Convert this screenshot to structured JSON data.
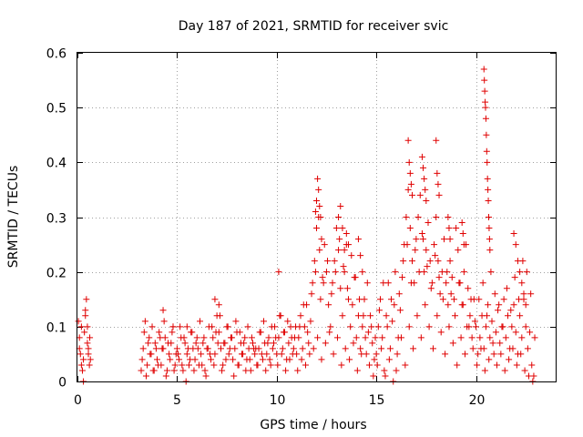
{
  "chart_data": {
    "type": "scatter",
    "title": "Day 187 of 2021, SRMTID for receiver svic",
    "xlabel": "GPS time / hours",
    "ylabel": "SRMTID / TECUs",
    "xlim": [
      0,
      24
    ],
    "ylim": [
      0,
      0.6
    ],
    "xticks": [
      0,
      5,
      10,
      15,
      20
    ],
    "xtick_labels": [
      "0",
      "5",
      "10",
      "15",
      "20"
    ],
    "yticks": [
      0,
      0.1,
      0.2,
      0.3,
      0.4,
      0.5,
      0.6
    ],
    "ytick_labels": [
      "0",
      "0.1",
      "0.2",
      "0.3",
      "0.4",
      "0.5",
      "0.6"
    ],
    "grid": true,
    "marker": "+",
    "color": "#e00000",
    "series": [
      {
        "name": "SRMTID",
        "x": [
          0.05,
          0.1,
          0.15,
          0.2,
          0.25,
          0.3,
          0.35,
          0.4,
          0.45,
          0.5,
          0.55,
          0.6,
          0.65,
          0.1,
          0.2,
          0.3,
          0.4,
          0.5,
          0.55,
          0.62,
          3.2,
          3.3,
          3.4,
          3.5,
          3.6,
          3.7,
          3.8,
          3.9,
          4.0,
          4.1,
          4.2,
          4.3,
          4.4,
          4.5,
          4.6,
          4.7,
          4.8,
          4.9,
          5.0,
          5.1,
          5.2,
          5.3,
          5.4,
          5.5,
          5.6,
          5.7,
          5.8,
          5.9,
          6.0,
          6.1,
          6.2,
          6.3,
          6.4,
          6.5,
          6.6,
          6.7,
          6.8,
          6.9,
          7.0,
          7.1,
          7.2,
          7.3,
          7.4,
          7.5,
          7.6,
          7.7,
          7.8,
          7.9,
          8.0,
          8.1,
          8.2,
          8.3,
          8.4,
          8.5,
          8.6,
          8.7,
          8.8,
          8.9,
          9.0,
          9.1,
          9.2,
          9.3,
          9.4,
          9.5,
          9.6,
          9.7,
          9.8,
          9.9,
          10.0,
          10.1,
          10.2,
          10.3,
          10.4,
          10.5,
          10.6,
          10.7,
          10.8,
          10.9,
          3.25,
          3.45,
          3.65,
          3.85,
          4.05,
          4.25,
          4.45,
          4.65,
          4.85,
          5.05,
          5.25,
          5.45,
          5.65,
          5.85,
          6.05,
          6.25,
          6.45,
          6.65,
          6.85,
          7.05,
          7.25,
          7.45,
          7.65,
          7.85,
          8.05,
          8.25,
          8.45,
          8.65,
          8.85,
          9.05,
          9.25,
          9.45,
          9.65,
          9.85,
          10.05,
          10.25,
          10.45,
          10.65,
          10.85,
          3.35,
          3.55,
          3.75,
          3.95,
          4.15,
          4.35,
          4.55,
          4.75,
          4.95,
          5.15,
          5.35,
          5.55,
          5.75,
          5.95,
          6.15,
          6.35,
          6.55,
          6.75,
          6.95,
          7.15,
          7.35,
          7.55,
          7.75,
          7.95,
          8.15,
          8.35,
          8.55,
          8.75,
          8.95,
          9.15,
          9.35,
          9.55,
          9.75,
          9.95,
          10.15,
          10.35,
          10.55,
          10.75,
          10.95,
          4.3,
          4.8,
          5.5,
          6.9,
          7.1,
          10.1,
          11.0,
          11.1,
          11.2,
          11.3,
          11.4,
          11.5,
          11.6,
          11.7,
          11.8,
          11.9,
          12.0,
          12.1,
          12.2,
          12.3,
          12.4,
          12.5,
          12.6,
          12.7,
          12.8,
          12.9,
          13.0,
          13.1,
          13.2,
          13.3,
          13.4,
          13.5,
          13.6,
          13.7,
          13.8,
          13.9,
          14.0,
          14.1,
          14.2,
          14.3,
          14.4,
          14.5,
          14.6,
          14.7,
          14.8,
          14.9,
          11.05,
          11.25,
          11.45,
          11.65,
          11.85,
          12.05,
          12.25,
          12.45,
          12.65,
          12.85,
          13.05,
          13.25,
          13.45,
          13.65,
          13.85,
          14.05,
          14.25,
          14.45,
          14.65,
          14.85,
          11.15,
          11.35,
          11.55,
          11.75,
          11.95,
          12.15,
          12.35,
          12.55,
          12.75,
          12.95,
          13.15,
          13.35,
          13.55,
          13.75,
          13.95,
          14.15,
          14.35,
          14.55,
          14.75,
          14.95,
          11.95,
          12.0,
          12.05,
          12.1,
          12.15,
          12.2,
          12.25,
          13.1,
          13.2,
          13.3,
          13.4,
          13.5,
          13.6,
          14.1,
          14.2,
          14.3,
          15.0,
          15.1,
          15.2,
          15.3,
          15.4,
          15.5,
          15.6,
          15.7,
          15.8,
          15.9,
          16.0,
          16.1,
          16.2,
          16.3,
          16.4,
          16.5,
          16.6,
          16.7,
          16.8,
          16.9,
          17.0,
          17.1,
          17.2,
          17.3,
          17.4,
          17.5,
          17.6,
          17.7,
          17.8,
          17.9,
          18.0,
          18.1,
          18.2,
          18.3,
          18.4,
          18.5,
          18.6,
          18.7,
          18.8,
          18.9,
          19.0,
          19.1,
          19.2,
          19.3,
          19.4,
          19.5,
          19.6,
          19.7,
          19.8,
          19.9,
          15.05,
          15.25,
          15.45,
          15.65,
          15.85,
          16.05,
          16.25,
          16.45,
          16.65,
          16.85,
          17.05,
          17.25,
          17.45,
          17.65,
          17.85,
          18.05,
          18.25,
          18.45,
          18.65,
          18.85,
          19.05,
          19.25,
          19.45,
          19.65,
          19.85,
          15.15,
          15.35,
          15.55,
          15.75,
          15.95,
          16.15,
          16.35,
          16.55,
          16.75,
          16.95,
          17.15,
          17.35,
          17.55,
          17.75,
          17.95,
          18.15,
          18.35,
          18.55,
          18.75,
          18.95,
          19.15,
          19.35,
          19.55,
          19.75,
          19.95,
          16.6,
          16.65,
          16.7,
          16.75,
          16.8,
          17.3,
          17.35,
          17.4,
          17.45,
          17.5,
          18.0,
          18.05,
          18.1,
          18.15,
          18.6,
          18.65,
          18.7,
          19.3,
          19.35,
          19.4,
          20.0,
          20.1,
          20.2,
          20.3,
          20.4,
          20.5,
          20.6,
          20.7,
          20.8,
          20.9,
          21.0,
          21.1,
          21.2,
          21.3,
          21.4,
          21.5,
          21.6,
          21.7,
          21.8,
          21.9,
          22.0,
          22.1,
          22.2,
          22.3,
          22.4,
          22.5,
          22.6,
          22.7,
          22.8,
          22.9,
          20.05,
          20.25,
          20.45,
          20.65,
          20.85,
          21.05,
          21.25,
          21.45,
          21.65,
          21.85,
          22.05,
          22.25,
          22.45,
          22.65,
          22.85,
          20.15,
          20.35,
          20.55,
          20.75,
          20.95,
          21.15,
          21.35,
          21.55,
          21.75,
          21.95,
          22.15,
          22.35,
          22.55,
          22.75,
          22.95,
          20.4,
          20.42,
          20.44,
          20.46,
          20.48,
          20.5,
          20.52,
          20.54,
          20.56,
          20.58,
          20.6,
          20.62,
          20.64,
          20.66,
          20.68,
          20.7,
          21.9,
          22.0,
          22.1,
          22.2,
          22.3,
          22.4,
          22.5
        ],
        "y": [
          0.11,
          0.08,
          0.05,
          0.03,
          0.02,
          0.04,
          0.09,
          0.13,
          0.15,
          0.07,
          0.05,
          0.03,
          0.04,
          0.06,
          0.1,
          0.0,
          0.12,
          0.1,
          0.06,
          0.08,
          0.02,
          0.06,
          0.11,
          0.03,
          0.08,
          0.05,
          0.02,
          0.07,
          0.04,
          0.09,
          0.03,
          0.06,
          0.08,
          0.02,
          0.05,
          0.07,
          0.1,
          0.03,
          0.06,
          0.04,
          0.08,
          0.02,
          0.07,
          0.05,
          0.03,
          0.09,
          0.06,
          0.04,
          0.08,
          0.03,
          0.05,
          0.07,
          0.02,
          0.06,
          0.1,
          0.04,
          0.08,
          0.05,
          0.12,
          0.09,
          0.06,
          0.03,
          0.07,
          0.1,
          0.05,
          0.08,
          0.04,
          0.06,
          0.09,
          0.03,
          0.07,
          0.05,
          0.08,
          0.04,
          0.06,
          0.02,
          0.07,
          0.05,
          0.03,
          0.06,
          0.09,
          0.04,
          0.07,
          0.05,
          0.08,
          0.03,
          0.06,
          0.1,
          0.05,
          0.08,
          0.12,
          0.06,
          0.09,
          0.04,
          0.07,
          0.1,
          0.05,
          0.08,
          0.04,
          0.01,
          0.05,
          0.02,
          0.03,
          0.06,
          0.01,
          0.04,
          0.02,
          0.05,
          0.03,
          0.0,
          0.04,
          0.02,
          0.06,
          0.03,
          0.01,
          0.05,
          0.03,
          0.07,
          0.02,
          0.04,
          0.06,
          0.01,
          0.03,
          0.05,
          0.02,
          0.04,
          0.06,
          0.03,
          0.05,
          0.02,
          0.04,
          0.07,
          0.03,
          0.05,
          0.02,
          0.04,
          0.06,
          0.09,
          0.07,
          0.1,
          0.06,
          0.08,
          0.11,
          0.07,
          0.09,
          0.05,
          0.1,
          0.08,
          0.06,
          0.09,
          0.07,
          0.11,
          0.08,
          0.06,
          0.1,
          0.09,
          0.12,
          0.07,
          0.1,
          0.08,
          0.11,
          0.09,
          0.07,
          0.1,
          0.08,
          0.06,
          0.09,
          0.11,
          0.07,
          0.1,
          0.08,
          0.12,
          0.09,
          0.11,
          0.08,
          0.1,
          0.13,
          0.1,
          0.1,
          0.15,
          0.14,
          0.2,
          0.05,
          0.08,
          0.12,
          0.06,
          0.1,
          0.14,
          0.07,
          0.11,
          0.18,
          0.22,
          0.28,
          0.3,
          0.15,
          0.19,
          0.25,
          0.2,
          0.14,
          0.1,
          0.18,
          0.22,
          0.28,
          0.24,
          0.17,
          0.12,
          0.2,
          0.25,
          0.15,
          0.1,
          0.14,
          0.19,
          0.08,
          0.12,
          0.06,
          0.1,
          0.15,
          0.05,
          0.09,
          0.12,
          0.07,
          0.04,
          0.02,
          0.04,
          0.03,
          0.05,
          0.06,
          0.08,
          0.04,
          0.07,
          0.09,
          0.05,
          0.08,
          0.03,
          0.06,
          0.04,
          0.07,
          0.02,
          0.05,
          0.08,
          0.03,
          0.01,
          0.1,
          0.14,
          0.09,
          0.16,
          0.2,
          0.24,
          0.18,
          0.22,
          0.16,
          0.2,
          0.26,
          0.21,
          0.17,
          0.23,
          0.19,
          0.15,
          0.12,
          0.18,
          0.1,
          0.08,
          0.31,
          0.33,
          0.37,
          0.35,
          0.32,
          0.3,
          0.26,
          0.3,
          0.32,
          0.28,
          0.24,
          0.27,
          0.25,
          0.26,
          0.23,
          0.2,
          0.05,
          0.1,
          0.15,
          0.08,
          0.02,
          0.12,
          0.18,
          0.06,
          0.11,
          0.14,
          0.02,
          0.08,
          0.13,
          0.19,
          0.25,
          0.3,
          0.35,
          0.28,
          0.22,
          0.18,
          0.26,
          0.3,
          0.34,
          0.27,
          0.2,
          0.24,
          0.29,
          0.22,
          0.18,
          0.25,
          0.3,
          0.22,
          0.16,
          0.2,
          0.26,
          0.18,
          0.14,
          0.22,
          0.19,
          0.15,
          0.28,
          0.24,
          0.18,
          0.14,
          0.2,
          0.25,
          0.17,
          0.12,
          0.08,
          0.15,
          0.03,
          0.06,
          0.01,
          0.04,
          0.0,
          0.05,
          0.08,
          0.03,
          0.1,
          0.06,
          0.12,
          0.08,
          0.14,
          0.1,
          0.06,
          0.12,
          0.09,
          0.05,
          0.1,
          0.07,
          0.03,
          0.08,
          0.05,
          0.1,
          0.06,
          0.13,
          0.18,
          0.1,
          0.15,
          0.2,
          0.16,
          0.22,
          0.25,
          0.18,
          0.24,
          0.2,
          0.26,
          0.21,
          0.17,
          0.23,
          0.19,
          0.15,
          0.2,
          0.16,
          0.12,
          0.18,
          0.14,
          0.1,
          0.15,
          0.11,
          0.44,
          0.4,
          0.38,
          0.36,
          0.34,
          0.41,
          0.39,
          0.37,
          0.35,
          0.33,
          0.44,
          0.38,
          0.36,
          0.34,
          0.3,
          0.28,
          0.26,
          0.29,
          0.27,
          0.25,
          0.1,
          0.05,
          0.08,
          0.12,
          0.06,
          0.1,
          0.14,
          0.08,
          0.11,
          0.05,
          0.09,
          0.13,
          0.07,
          0.1,
          0.15,
          0.08,
          0.12,
          0.06,
          0.1,
          0.14,
          0.09,
          0.05,
          0.12,
          0.08,
          0.15,
          0.1,
          0.06,
          0.09,
          0.03,
          0.01,
          0.03,
          0.06,
          0.02,
          0.04,
          0.07,
          0.03,
          0.05,
          0.02,
          0.04,
          0.06,
          0.03,
          0.05,
          0.02,
          0.01,
          0.0,
          0.15,
          0.18,
          0.12,
          0.2,
          0.16,
          0.14,
          0.1,
          0.17,
          0.13,
          0.19,
          0.15,
          0.22,
          0.2,
          0.16,
          0.08,
          0.57,
          0.55,
          0.53,
          0.51,
          0.5,
          0.48,
          0.45,
          0.42,
          0.4,
          0.37,
          0.35,
          0.33,
          0.3,
          0.28,
          0.26,
          0.24,
          0.27,
          0.25,
          0.22,
          0.2,
          0.18,
          0.16,
          0.14
        ]
      }
    ]
  }
}
